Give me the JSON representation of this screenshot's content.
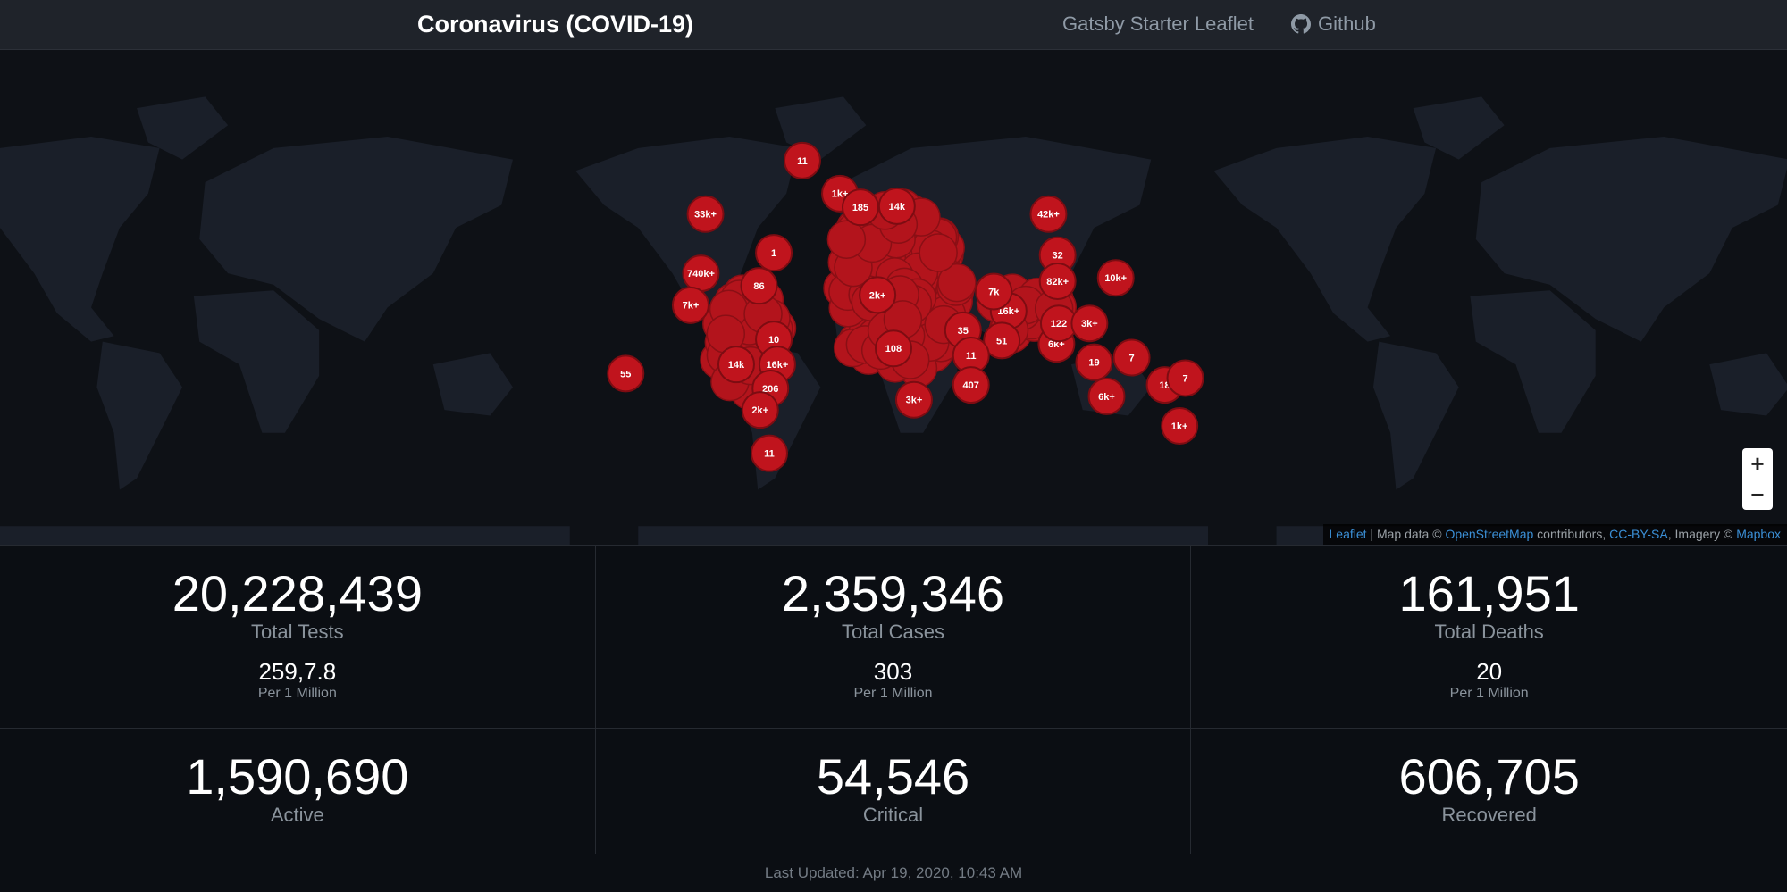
{
  "header": {
    "title": "Coronavirus (COVID-19)",
    "nav": [
      "Gatsby Starter Leaflet",
      "Github"
    ]
  },
  "map": {
    "markers": [
      "11",
      "1k+",
      "185",
      "14k",
      "33k+",
      "42k+",
      "1",
      "32",
      "740k+",
      "86",
      "82k+",
      "10k+",
      "7k+",
      "2k+",
      "16k+",
      "7k",
      "10",
      "51",
      "6k+",
      "35",
      "108",
      "11",
      "19",
      "7",
      "55",
      "14k",
      "16k+",
      "407",
      "18",
      "7",
      "206",
      "3k+",
      "6k+",
      "2k+",
      "11",
      "1k+",
      "122",
      "3k+"
    ],
    "zoom": [
      "+",
      "−"
    ],
    "attribution": [
      "Leaflet",
      " | Map data © ",
      "OpenStreetMap",
      " contributors, ",
      "CC-BY-SA",
      ", Imagery © ",
      "Mapbox"
    ]
  },
  "stats": [
    {
      "value": "20,228,439",
      "label": "Total Tests",
      "per": "259,7.8",
      "per_label": "Per 1 Million"
    },
    {
      "value": "2,359,346",
      "label": "Total Cases",
      "per": "303",
      "per_label": "Per 1 Million"
    },
    {
      "value": "161,951",
      "label": "Total Deaths",
      "per": "20",
      "per_label": "Per 1 Million"
    },
    {
      "value": "1,590,690",
      "label": "Active"
    },
    {
      "value": "54,546",
      "label": "Critical"
    },
    {
      "value": "606,705",
      "label": "Recovered"
    }
  ],
  "footer": "Last Updated: Apr 19, 2020, 10:43 AM"
}
